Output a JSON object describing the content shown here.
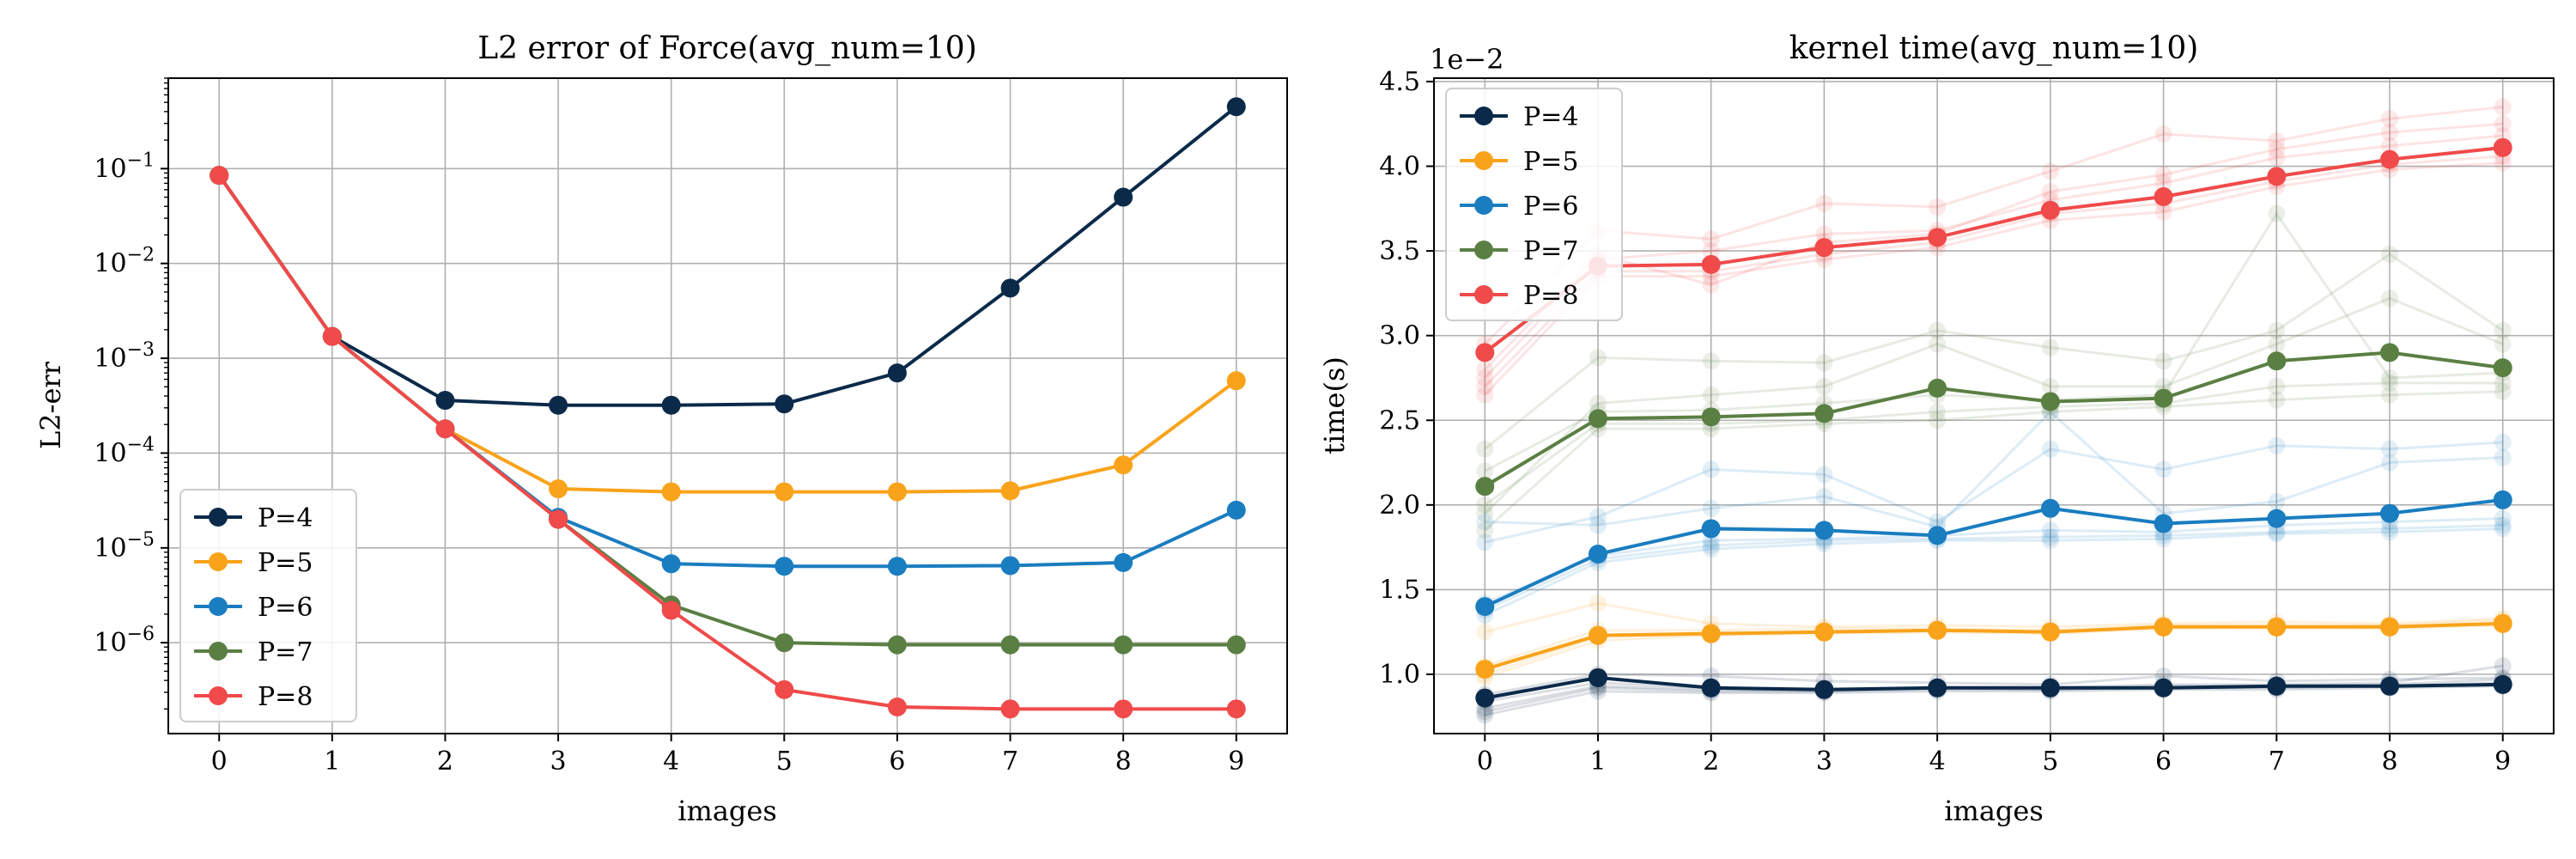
{
  "chart_data": [
    {
      "type": "line",
      "title": "L2 error of Force(avg_num=10)",
      "xlabel": "images",
      "ylabel": "L2-err",
      "yscale": "log",
      "x": [
        0,
        1,
        2,
        3,
        4,
        5,
        6,
        7,
        8,
        9
      ],
      "xticks": [
        "0",
        "1",
        "2",
        "3",
        "4",
        "5",
        "6",
        "7",
        "8",
        "9"
      ],
      "xlim": [
        -0.45,
        9.45
      ],
      "ylim": [
        1.1e-07,
        0.9
      ],
      "yticks": [
        {
          "value": 1e-06,
          "base": "10",
          "exp": "−6"
        },
        {
          "value": 1e-05,
          "base": "10",
          "exp": "−5"
        },
        {
          "value": 0.0001,
          "base": "10",
          "exp": "−4"
        },
        {
          "value": 0.001,
          "base": "10",
          "exp": "−3"
        },
        {
          "value": 0.01,
          "base": "10",
          "exp": "−2"
        },
        {
          "value": 0.1,
          "base": "10",
          "exp": "−1"
        }
      ],
      "grid": true,
      "legend": "lower-left",
      "series": [
        {
          "name": "P=4",
          "color": "#0b2a4a",
          "values": [
            0.085,
            0.0017,
            0.00036,
            0.00032,
            0.00032,
            0.00033,
            0.0007,
            0.0055,
            0.05,
            0.45
          ]
        },
        {
          "name": "P=5",
          "color": "#f9a31b",
          "values": [
            0.085,
            0.0017,
            0.00018,
            4.2e-05,
            3.9e-05,
            3.9e-05,
            3.9e-05,
            4e-05,
            7.5e-05,
            0.00058
          ]
        },
        {
          "name": "P=6",
          "color": "#1a7dc0",
          "values": [
            0.085,
            0.0017,
            0.00018,
            2.1e-05,
            6.8e-06,
            6.4e-06,
            6.4e-06,
            6.5e-06,
            7e-06,
            2.5e-05
          ]
        },
        {
          "name": "P=7",
          "color": "#5a7f43",
          "values": [
            0.085,
            0.0017,
            0.00018,
            2e-05,
            2.5e-06,
            1e-06,
            9.5e-07,
            9.5e-07,
            9.5e-07,
            9.5e-07
          ]
        },
        {
          "name": "P=8",
          "color": "#f04a4a",
          "values": [
            0.085,
            0.0017,
            0.00018,
            2e-05,
            2.2e-06,
            3.2e-07,
            2.1e-07,
            2e-07,
            2e-07,
            2e-07
          ]
        }
      ]
    },
    {
      "type": "line",
      "title": "kernel time(avg_num=10)",
      "xlabel": "images",
      "ylabel": "time(s)",
      "offset_label": "1e−2",
      "x": [
        0,
        1,
        2,
        3,
        4,
        5,
        6,
        7,
        8,
        9
      ],
      "xticks": [
        "0",
        "1",
        "2",
        "3",
        "4",
        "5",
        "6",
        "7",
        "8",
        "9"
      ],
      "xlim": [
        -0.45,
        9.45
      ],
      "ylim": [
        0.65,
        4.52
      ],
      "yticks": [
        "1.0",
        "1.5",
        "2.0",
        "2.5",
        "3.0",
        "3.5",
        "4.0",
        "4.5"
      ],
      "grid": true,
      "legend": "upper-left",
      "series": [
        {
          "name": "P=4",
          "color": "#0b2a4a",
          "values": [
            0.86,
            0.98,
            0.92,
            0.91,
            0.92,
            0.92,
            0.92,
            0.93,
            0.93,
            0.94
          ],
          "runs": [
            [
              0.78,
              0.92,
              0.9,
              0.9,
              0.91,
              0.91,
              0.92,
              0.92,
              0.93,
              0.95
            ],
            [
              0.8,
              0.93,
              0.91,
              0.9,
              0.92,
              0.91,
              0.93,
              0.93,
              0.94,
              0.97
            ],
            [
              0.84,
              0.95,
              0.92,
              0.91,
              0.92,
              0.92,
              0.94,
              0.94,
              0.95,
              1.05
            ],
            [
              0.76,
              0.9,
              0.89,
              0.89,
              0.9,
              0.9,
              0.91,
              0.91,
              0.92,
              0.93
            ],
            [
              0.88,
              1.0,
              0.99,
              0.96,
              0.95,
              0.94,
              0.99,
              0.96,
              0.97,
              0.98
            ]
          ]
        },
        {
          "name": "P=5",
          "color": "#f9a31b",
          "values": [
            1.03,
            1.23,
            1.24,
            1.25,
            1.26,
            1.25,
            1.28,
            1.28,
            1.28,
            1.3
          ],
          "runs": [
            [
              0.98,
              1.2,
              1.23,
              1.24,
              1.25,
              1.24,
              1.27,
              1.27,
              1.27,
              1.29
            ],
            [
              1.0,
              1.22,
              1.24,
              1.25,
              1.26,
              1.25,
              1.28,
              1.28,
              1.28,
              1.3
            ],
            [
              1.05,
              1.26,
              1.26,
              1.27,
              1.27,
              1.26,
              1.29,
              1.29,
              1.29,
              1.32
            ],
            [
              1.25,
              1.42,
              1.3,
              1.28,
              1.29,
              1.28,
              1.3,
              1.31,
              1.3,
              1.33
            ]
          ]
        },
        {
          "name": "P=6",
          "color": "#1a7dc0",
          "values": [
            1.4,
            1.71,
            1.86,
            1.85,
            1.82,
            1.98,
            1.89,
            1.92,
            1.95,
            2.03
          ],
          "runs": [
            [
              1.35,
              1.66,
              1.74,
              1.77,
              1.79,
              1.79,
              1.8,
              1.83,
              1.84,
              1.86
            ],
            [
              1.38,
              1.68,
              1.76,
              1.79,
              1.8,
              1.81,
              1.82,
              1.84,
              1.86,
              1.88
            ],
            [
              1.78,
              1.93,
              2.21,
              2.18,
              1.9,
              2.33,
              2.21,
              2.35,
              2.33,
              2.37
            ],
            [
              1.9,
              1.88,
              1.98,
              2.05,
              1.87,
              2.55,
              1.95,
              2.02,
              2.25,
              2.28
            ],
            [
              1.42,
              1.7,
              1.79,
              1.8,
              1.82,
              1.85,
              1.84,
              1.88,
              1.9,
              1.92
            ]
          ]
        },
        {
          "name": "P=7",
          "color": "#5a7f43",
          "values": [
            2.11,
            2.51,
            2.52,
            2.54,
            2.69,
            2.61,
            2.63,
            2.85,
            2.9,
            2.81
          ],
          "runs": [
            [
              1.85,
              2.45,
              2.45,
              2.48,
              2.5,
              2.55,
              2.58,
              2.62,
              2.65,
              2.67
            ],
            [
              2.0,
              2.48,
              2.48,
              2.5,
              2.55,
              2.58,
              2.6,
              2.7,
              2.72,
              2.72
            ],
            [
              2.2,
              2.55,
              2.56,
              2.6,
              2.65,
              2.62,
              2.65,
              3.72,
              2.75,
              2.78
            ],
            [
              2.33,
              2.87,
              2.85,
              2.84,
              3.03,
              2.93,
              2.85,
              3.03,
              3.48,
              3.03
            ],
            [
              1.95,
              2.6,
              2.65,
              2.7,
              2.95,
              2.7,
              2.7,
              2.95,
              3.22,
              2.95
            ]
          ]
        },
        {
          "name": "P=8",
          "color": "#f04a4a",
          "values": [
            2.9,
            3.41,
            3.42,
            3.52,
            3.58,
            3.74,
            3.82,
            3.94,
            4.04,
            4.11
          ],
          "runs": [
            [
              2.65,
              3.35,
              3.35,
              3.45,
              3.52,
              3.68,
              3.73,
              3.88,
              3.98,
              4.02
            ],
            [
              2.7,
              3.38,
              3.38,
              3.48,
              3.55,
              3.72,
              3.78,
              3.91,
              4.01,
              4.06
            ],
            [
              2.75,
              3.45,
              3.5,
              3.6,
              3.62,
              3.8,
              3.9,
              4.05,
              4.12,
              4.18
            ],
            [
              2.95,
              3.62,
              3.57,
              3.78,
              3.76,
              3.97,
              4.19,
              4.15,
              4.28,
              4.35
            ],
            [
              2.8,
              3.48,
              3.3,
              3.55,
              3.6,
              3.85,
              3.95,
              4.1,
              4.2,
              4.25
            ]
          ]
        }
      ]
    }
  ]
}
